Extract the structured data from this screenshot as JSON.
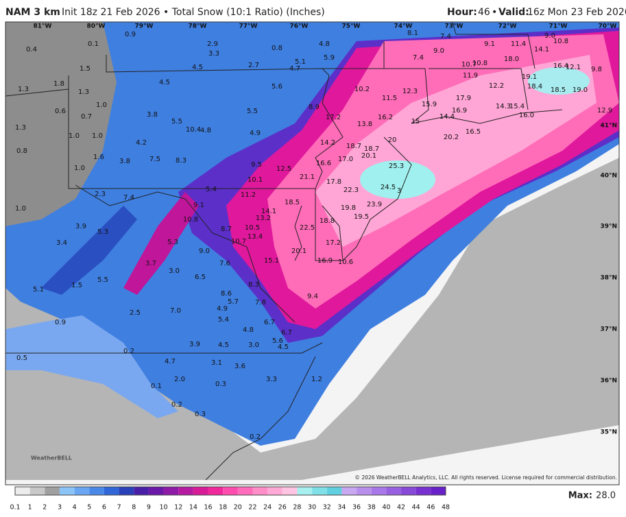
{
  "header": {
    "model": "NAM 3 km",
    "description": "Init 18z 21 Feb 2026 • Total Snow (10:1 Ratio) (Inches)",
    "hour_label": "Hour:",
    "hour": "46",
    "separator": "•",
    "valid_label": "Valid:",
    "valid": "16z Mon 23 Feb 2026"
  },
  "map": {
    "longitudes": [
      "81°W",
      "80°W",
      "79°W",
      "78°W",
      "77°W",
      "76°W",
      "75°W",
      "74°W",
      "73°W",
      "72°W",
      "71°W",
      "70°W"
    ],
    "latitudes": [
      "41°N",
      "40°N",
      "39°N",
      "38°N",
      "37°N",
      "36°N",
      "35°N"
    ],
    "labels": [
      "0.9",
      "0.4",
      "0.1",
      "1.5",
      "1.3",
      "1.8",
      "1.3",
      "0.6",
      "0.7",
      "1.0",
      "1.3",
      "1.0",
      "1.0",
      "0.8",
      "1.6",
      "1.0",
      "1.0",
      "2.9",
      "3.3",
      "4.5",
      "2.7",
      "0.8",
      "4.8",
      "5.9",
      "5.1",
      "4.7",
      "4.5",
      "5.6",
      "3.8",
      "5.5",
      "10.4",
      "4.8",
      "5.5",
      "4.9",
      "8.9",
      "4.2",
      "7.5",
      "8.3",
      "3.8",
      "9.5",
      "12.5",
      "10.1",
      "5.4",
      "7.4",
      "2.3",
      "11.2",
      "9.1",
      "10.8",
      "8.7",
      "3.9",
      "5.3",
      "3.4",
      "5.3",
      "10.7",
      "13.4",
      "10.5",
      "13.2",
      "14.1",
      "18.5",
      "9.0",
      "3.7",
      "7.6",
      "15.1",
      "20.1",
      "22.5",
      "3.0",
      "6.5",
      "8.3",
      "5.1",
      "1.5",
      "5.5",
      "8.6",
      "5.7",
      "7.8",
      "4.9",
      "2.5",
      "7.0",
      "5.4",
      "6.7",
      "0.9",
      "4.8",
      "6.7",
      "5.6",
      "4.5",
      "3.0",
      "4.5",
      "3.9",
      "0.2",
      "0.5",
      "4.7",
      "3.1",
      "3.6",
      "2.0",
      "3.3",
      "1.2",
      "0.1",
      "0.3",
      "0.2",
      "0.3",
      "0.2",
      "9.4",
      "16.9",
      "10.6",
      "17.2",
      "18.8",
      "19.8",
      "19.5",
      "23.9",
      "22.3",
      "24.5",
      "3",
      "17.8",
      "21.1",
      "16.6",
      "17.0",
      "14.2",
      "18.7",
      "18.7",
      "20.1",
      "25.3",
      "20",
      "17.2",
      "13.8",
      "16.2",
      "10.2",
      "11.5",
      "12.3",
      "15",
      "15.9",
      "16.9",
      "14.4",
      "14.3",
      "15.4",
      "16.5",
      "17.9",
      "20.2",
      "12.2",
      "11.9",
      "10.7",
      "10.8",
      "9.1",
      "8.1",
      "7.4",
      "9.0",
      "7.4",
      "11.4",
      "14.1",
      "9.0",
      "10.8",
      "18.0",
      "16.4",
      "12.1",
      "9.8",
      "19.1",
      "18.4",
      "18.5",
      "19.0",
      "12.9",
      "16.0"
    ],
    "logo": "WeatherBELL",
    "copyright": "© 2026 WeatherBELL Analytics, LLC. All rights reserved. License required for commercial distribution."
  },
  "legend": {
    "ticks": [
      "0.1",
      "1",
      "2",
      "3",
      "4",
      "5",
      "6",
      "7",
      "8",
      "9",
      "10",
      "12",
      "14",
      "16",
      "18",
      "20",
      "22",
      "24",
      "26",
      "28",
      "30",
      "32",
      "34",
      "36",
      "38",
      "40",
      "42",
      "44",
      "46",
      "48"
    ],
    "max_label": "Max:",
    "max": "28.0"
  }
}
